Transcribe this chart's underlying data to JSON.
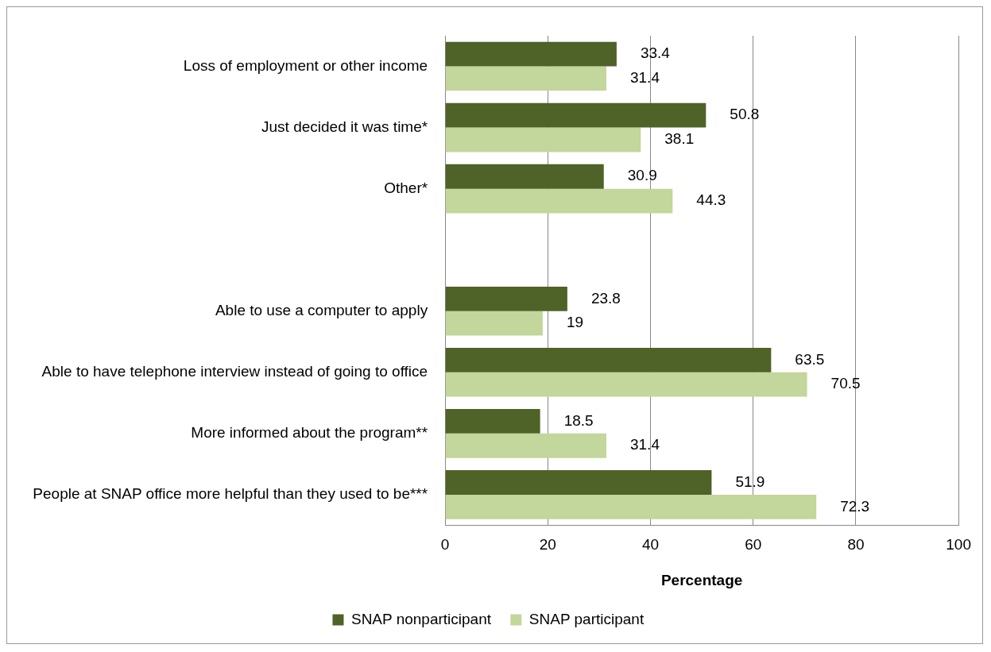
{
  "chart_data": {
    "type": "bar",
    "orientation": "horizontal",
    "xlabel": "Percentage",
    "categories": [
      "Loss of employment or other income",
      "Just decided it was time*",
      "Other*",
      null,
      "Able to use a computer to apply",
      "Able to have telephone interview instead of going to office",
      "More informed about the program**",
      "People at SNAP office more helpful than they used to be***"
    ],
    "series": [
      {
        "name": "SNAP nonparticipant",
        "color": "#4f6228",
        "values": [
          33.4,
          50.8,
          30.9,
          null,
          23.8,
          63.5,
          18.5,
          51.9
        ]
      },
      {
        "name": "SNAP participant",
        "color": "#c3d69b",
        "values": [
          31.4,
          38.1,
          44.3,
          null,
          19,
          70.5,
          31.4,
          72.3
        ]
      }
    ],
    "xlim": [
      0,
      100
    ],
    "xticks": [
      0,
      20,
      40,
      60,
      80,
      100
    ],
    "grid": "x",
    "legend": "bottom",
    "data_labels": true
  }
}
